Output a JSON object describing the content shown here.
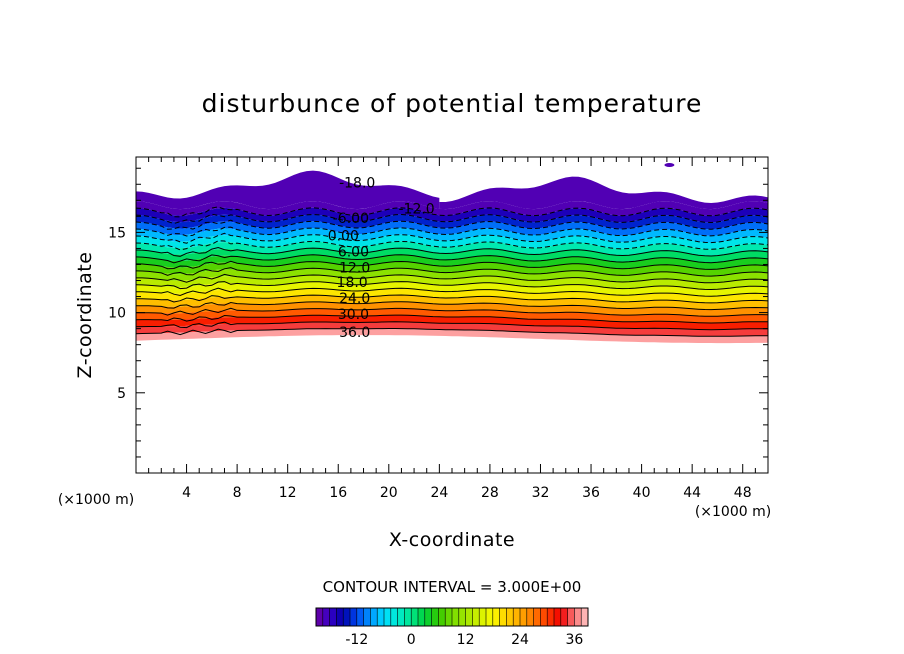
{
  "chart_data": {
    "type": "contour",
    "title": "disturbunce of potential temperature",
    "xlabel": "X-coordinate",
    "ylabel": "Z-coordinate",
    "x_unit": "(×1000 m)",
    "xlim": [
      0,
      50
    ],
    "ylim": [
      0,
      19.7
    ],
    "x_ticks": [
      4,
      8,
      12,
      16,
      20,
      24,
      28,
      32,
      36,
      40,
      44,
      48
    ],
    "y_ticks": [
      5,
      10,
      15
    ],
    "contour_interval_text": "CONTOUR INTERVAL = 3.000E+00",
    "contour_interval": 3.0,
    "level_range": [
      -21,
      39
    ],
    "contour_labels": [
      {
        "text": "-18.0",
        "x": 17.5,
        "z": 18.1
      },
      {
        "text": "-12.0",
        "x": 22.2,
        "z": 16.5
      },
      {
        "text": "-6.00",
        "x": 17.0,
        "z": 15.9
      },
      {
        "text": "0.00",
        "x": 16.4,
        "z": 14.8
      },
      {
        "text": "6.00",
        "x": 17.2,
        "z": 13.8
      },
      {
        "text": "12.0",
        "x": 17.3,
        "z": 12.8
      },
      {
        "text": "18.0",
        "x": 17.1,
        "z": 11.9
      },
      {
        "text": "24.0",
        "x": 17.3,
        "z": 10.9
      },
      {
        "text": "30.0",
        "x": 17.2,
        "z": 9.9
      },
      {
        "text": "36.0",
        "x": 17.3,
        "z": 8.8
      }
    ],
    "colorbar": {
      "min": -21,
      "max": 39,
      "ticks": [
        {
          "v": -12,
          "t": "-12"
        },
        {
          "v": 0,
          "t": "0"
        },
        {
          "v": 12,
          "t": "12"
        },
        {
          "v": 24,
          "t": "24"
        },
        {
          "v": 36,
          "t": "36"
        }
      ]
    }
  }
}
